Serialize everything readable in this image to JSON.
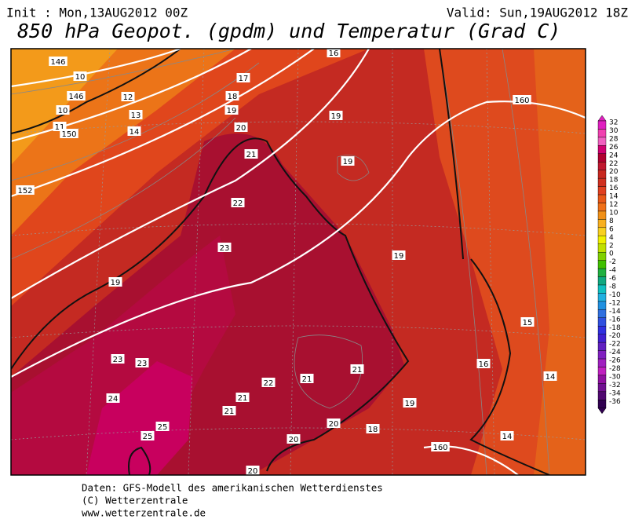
{
  "header": {
    "init": "Init : Mon,13AUG2012 00Z",
    "valid": "Valid: Sun,19AUG2012 18Z",
    "title": "850 hPa Geopot. (gpdm) und Temperatur (Grad C)"
  },
  "colorbar": {
    "labels": [
      32,
      30,
      28,
      26,
      24,
      22,
      20,
      18,
      16,
      14,
      12,
      10,
      8,
      6,
      4,
      2,
      0,
      -2,
      -4,
      -6,
      -8,
      -10,
      -12,
      -14,
      -16,
      -18,
      -20,
      -22,
      -24,
      -26,
      -28,
      -30,
      -32,
      -34,
      -36
    ]
  },
  "map": {
    "contour_labels": [
      16,
      146,
      10,
      17,
      146,
      12,
      18,
      10,
      13,
      19,
      19,
      160,
      11,
      150,
      14,
      20,
      21,
      19,
      152,
      22,
      23,
      19,
      19,
      15,
      23,
      23,
      21,
      16,
      14,
      21,
      22,
      24,
      21,
      19,
      21,
      25,
      20,
      25,
      18,
      20,
      14,
      160,
      20
    ]
  },
  "footer": {
    "line1": "Daten: GFS-Modell des amerikanischen Wetterdienstes",
    "line2": "(C) Wetterzentrale",
    "line3": "www.wetterzentrale.de"
  }
}
